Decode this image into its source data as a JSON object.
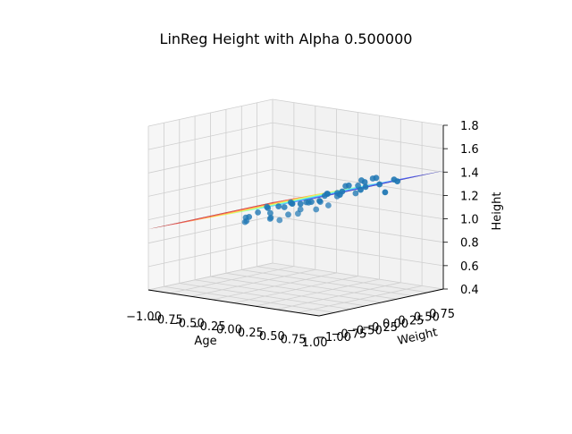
{
  "chart_data": {
    "type": "scatter",
    "projection": "3d",
    "title": "LinReg Height with Alpha 0.500000",
    "xlabel": "Age",
    "ylabel": "Weight",
    "zlabel": "Height",
    "xlim": [
      -1.0,
      1.0
    ],
    "ylim": [
      -1.0,
      1.0
    ],
    "zlim": [
      0.4,
      1.8
    ],
    "x_ticks": [
      "−1.00",
      "−0.75",
      "−0.50",
      "−0.25",
      "0.00",
      "0.25",
      "0.50",
      "0.75",
      "1.00"
    ],
    "y_ticks": [
      "−1.00",
      "−0.75",
      "−0.50",
      "−0.25",
      "0.00",
      "0.25",
      "0.50",
      "0.75"
    ],
    "z_ticks": [
      "0.4",
      "0.6",
      "0.8",
      "1.0",
      "1.2",
      "1.4",
      "1.6",
      "1.8"
    ],
    "grid": true,
    "point_color": "#1f77b4",
    "surface_colormap": "jet",
    "regression_plane": {
      "z_at_age_min": 0.92,
      "z_at_age_max": 1.41
    },
    "points": [
      {
        "x": -0.62,
        "y": 0.1,
        "z": 0.94
      },
      {
        "x": -0.55,
        "y": -0.05,
        "z": 0.96
      },
      {
        "x": -0.52,
        "y": 0.25,
        "z": 1.02
      },
      {
        "x": -0.48,
        "y": 0.05,
        "z": 1.0
      },
      {
        "x": -0.45,
        "y": -0.2,
        "z": 0.95
      },
      {
        "x": -0.42,
        "y": 0.3,
        "z": 1.03
      },
      {
        "x": -0.4,
        "y": 0.1,
        "z": 1.04
      },
      {
        "x": -0.36,
        "y": -0.3,
        "z": 0.98
      },
      {
        "x": -0.35,
        "y": 0.4,
        "z": 1.06
      },
      {
        "x": -0.3,
        "y": 0.0,
        "z": 1.02
      },
      {
        "x": -0.28,
        "y": 0.2,
        "z": 1.05
      },
      {
        "x": -0.22,
        "y": -0.1,
        "z": 1.0
      },
      {
        "x": -0.2,
        "y": 0.35,
        "z": 1.07
      },
      {
        "x": -0.15,
        "y": 0.15,
        "z": 1.1
      },
      {
        "x": -0.12,
        "y": -0.25,
        "z": 1.02
      },
      {
        "x": -0.08,
        "y": 0.05,
        "z": 1.12
      },
      {
        "x": -0.05,
        "y": 0.45,
        "z": 1.1
      },
      {
        "x": 0.0,
        "y": 0.25,
        "z": 1.12
      },
      {
        "x": 0.02,
        "y": -0.15,
        "z": 1.06
      },
      {
        "x": 0.05,
        "y": 0.1,
        "z": 1.14
      },
      {
        "x": 0.08,
        "y": 0.6,
        "z": 1.15
      },
      {
        "x": 0.1,
        "y": -0.4,
        "z": 1.05
      },
      {
        "x": 0.12,
        "y": 0.3,
        "z": 1.18
      },
      {
        "x": 0.15,
        "y": 0.0,
        "z": 1.16
      },
      {
        "x": 0.18,
        "y": 0.5,
        "z": 1.2
      },
      {
        "x": 0.2,
        "y": -0.2,
        "z": 1.13
      },
      {
        "x": 0.22,
        "y": 0.2,
        "z": 1.22
      },
      {
        "x": 0.25,
        "y": 0.7,
        "z": 1.2
      },
      {
        "x": 0.28,
        "y": -0.35,
        "z": 1.12
      },
      {
        "x": 0.3,
        "y": 0.1,
        "z": 1.24
      },
      {
        "x": 0.33,
        "y": 0.4,
        "z": 1.28
      },
      {
        "x": 0.36,
        "y": -0.1,
        "z": 1.2
      },
      {
        "x": 0.38,
        "y": 0.6,
        "z": 1.25
      },
      {
        "x": 0.4,
        "y": 0.25,
        "z": 1.3
      },
      {
        "x": 0.42,
        "y": -0.25,
        "z": 1.16
      },
      {
        "x": 0.45,
        "y": 0.05,
        "z": 1.27
      },
      {
        "x": 0.48,
        "y": 0.45,
        "z": 1.32
      },
      {
        "x": 0.5,
        "y": 0.75,
        "z": 1.2
      },
      {
        "x": 0.52,
        "y": -0.05,
        "z": 1.26
      },
      {
        "x": 0.55,
        "y": 0.3,
        "z": 1.36
      },
      {
        "x": 0.58,
        "y": 0.55,
        "z": 1.3
      },
      {
        "x": 0.6,
        "y": -0.3,
        "z": 1.22
      },
      {
        "x": 0.62,
        "y": 0.15,
        "z": 1.34
      },
      {
        "x": 0.65,
        "y": 0.4,
        "z": 1.38
      },
      {
        "x": 0.68,
        "y": 0.7,
        "z": 1.32
      },
      {
        "x": 0.7,
        "y": 0.0,
        "z": 1.3
      },
      {
        "x": 0.72,
        "y": 0.25,
        "z": 1.4
      },
      {
        "x": 0.75,
        "y": 0.55,
        "z": 1.36
      }
    ]
  }
}
